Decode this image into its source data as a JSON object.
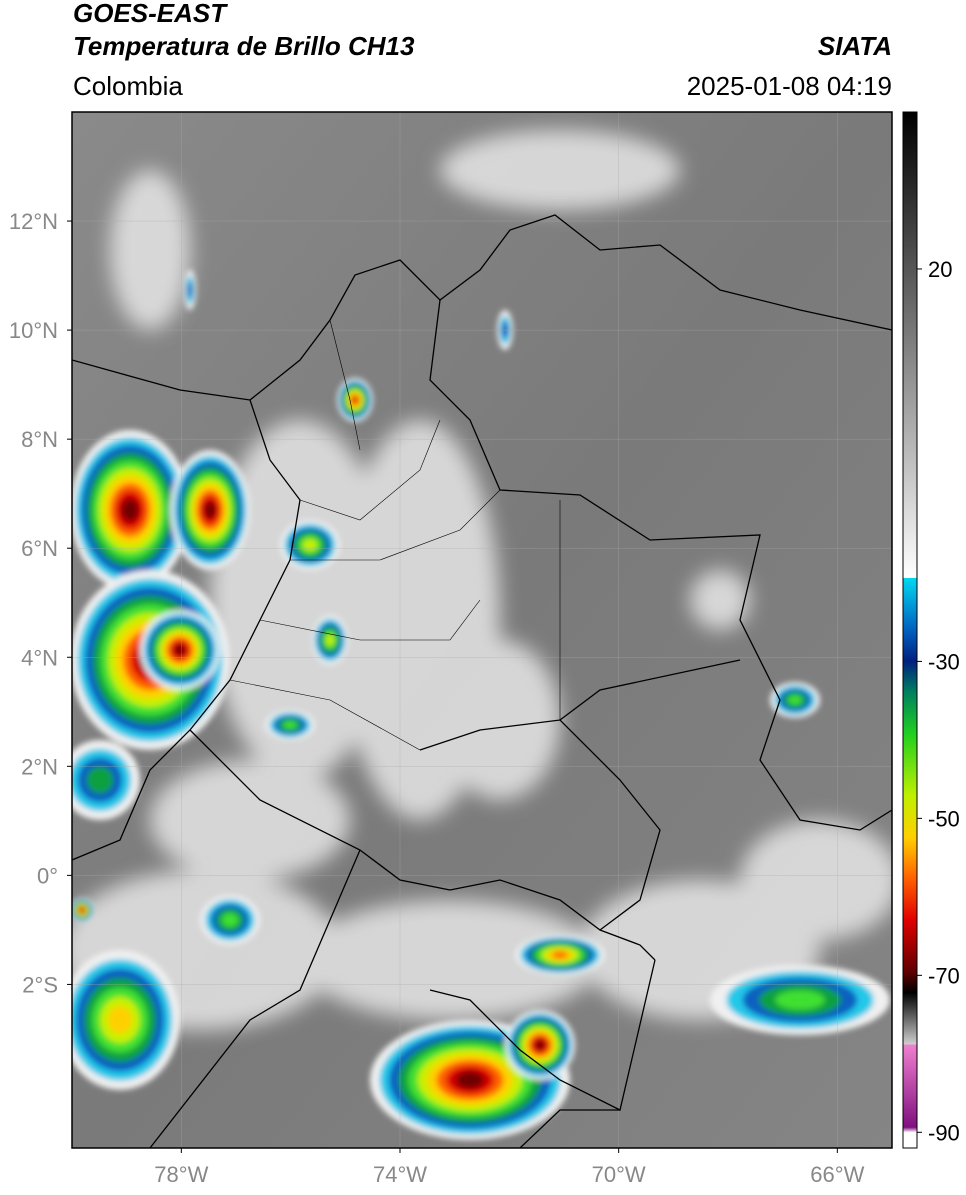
{
  "header": {
    "title": "GOES-EAST",
    "subtitle": "Temperatura de Brillo CH13",
    "source": "SIATA",
    "region": "Colombia",
    "datetime": "2025-01-08 04:19"
  },
  "map": {
    "xlim": [
      -80,
      -65
    ],
    "ylim": [
      -5,
      14
    ],
    "xticks": [
      {
        "value": -78,
        "label": "78°W"
      },
      {
        "value": -74,
        "label": "74°W"
      },
      {
        "value": -70,
        "label": "70°W"
      },
      {
        "value": -66,
        "label": "66°W"
      }
    ],
    "yticks": [
      {
        "value": 12,
        "label": "12°N"
      },
      {
        "value": 10,
        "label": "10°N"
      },
      {
        "value": 8,
        "label": "8°N"
      },
      {
        "value": 6,
        "label": "6°N"
      },
      {
        "value": 4,
        "label": "4°N"
      },
      {
        "value": 2,
        "label": "2°N"
      },
      {
        "value": 0,
        "label": "0°"
      },
      {
        "value": -2,
        "label": "2°S"
      }
    ]
  },
  "colorbar": {
    "lim": [
      40,
      -92
    ],
    "ticks": [
      20,
      -30,
      -50,
      -70,
      -90
    ]
  }
}
